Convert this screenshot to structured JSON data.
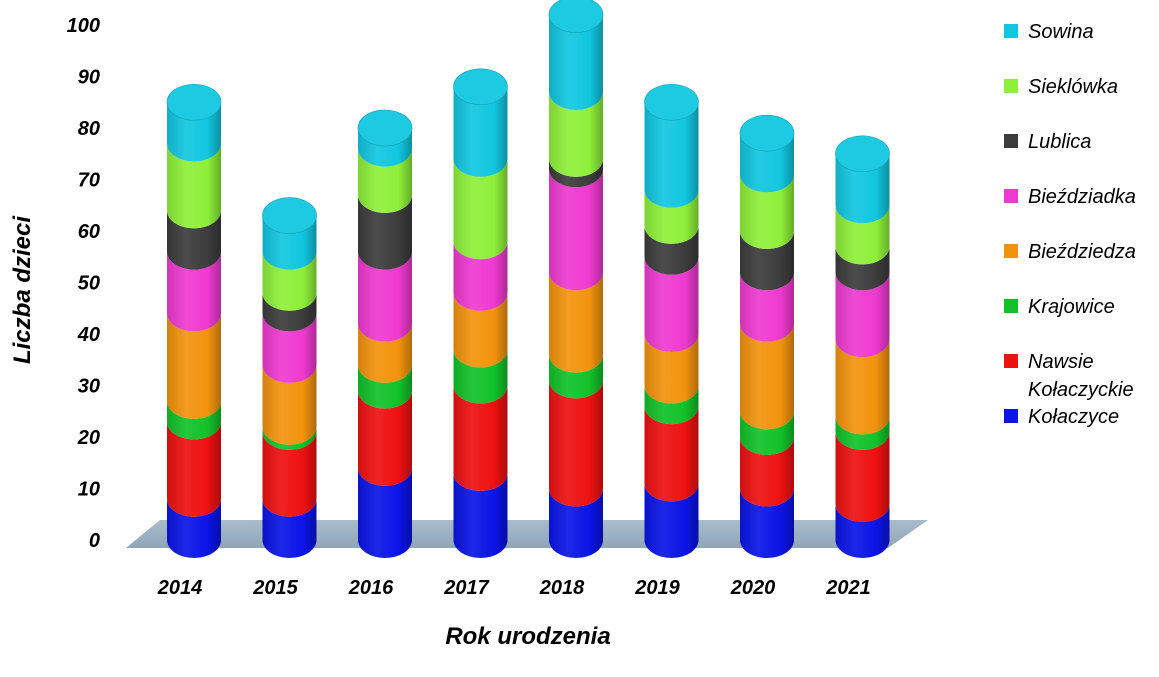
{
  "chart_data": {
    "type": "bar",
    "stacked": true,
    "style": "3d-cylinder",
    "title": "",
    "xlabel": "Rok urodzenia",
    "ylabel": "Liczba dzieci",
    "ylim": [
      0,
      100
    ],
    "yticks": [
      "0",
      "10",
      "20",
      "30",
      "40",
      "50",
      "60",
      "70",
      "80",
      "90",
      "100"
    ],
    "categories": [
      "2014",
      "2015",
      "2016",
      "2017",
      "2018",
      "2019",
      "2020",
      "2021"
    ],
    "legend_position": "right",
    "series": [
      {
        "name": "Kołaczyce",
        "color": "#0a14e6",
        "values": [
          8,
          8,
          14,
          13,
          10,
          11,
          10,
          7
        ]
      },
      {
        "name": "Nawsie Kołaczyckie",
        "color": "#ee1111",
        "values": [
          15,
          13,
          15,
          17,
          21,
          15,
          10,
          14
        ]
      },
      {
        "name": "Krajowice",
        "color": "#12c12a",
        "values": [
          4,
          1,
          5,
          7,
          5,
          4,
          5,
          3
        ]
      },
      {
        "name": "Bieździedza",
        "color": "#f2930e",
        "values": [
          17,
          12,
          8,
          11,
          16,
          10,
          17,
          15
        ]
      },
      {
        "name": "Bieździadka",
        "color": "#ef3ad0",
        "values": [
          12,
          10,
          14,
          10,
          20,
          15,
          10,
          13
        ]
      },
      {
        "name": "Lublica",
        "color": "#3c3c3c",
        "values": [
          8,
          4,
          11,
          0,
          2,
          6,
          8,
          5
        ]
      },
      {
        "name": "Sieklówka",
        "color": "#8ef03a",
        "values": [
          13,
          8,
          9,
          16,
          13,
          7,
          11,
          8
        ]
      },
      {
        "name": "Sowina",
        "color": "#12c6e0",
        "values": [
          8,
          7,
          4,
          14,
          15,
          17,
          8,
          10
        ]
      }
    ]
  }
}
